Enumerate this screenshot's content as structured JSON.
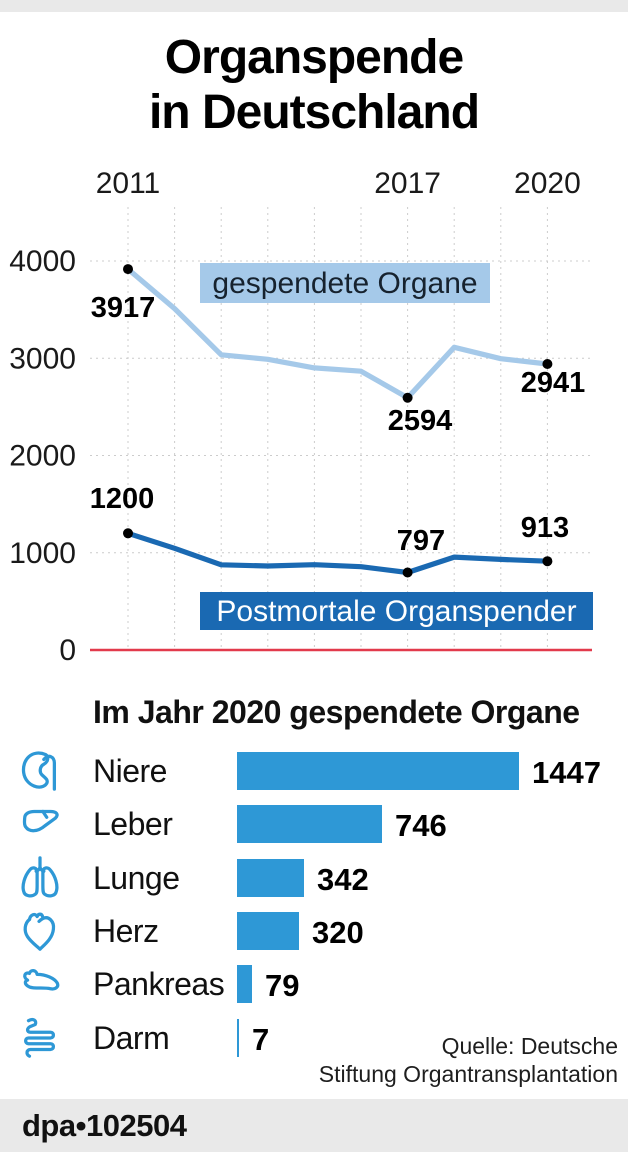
{
  "header": {
    "title_line1": "Organspende",
    "title_line2": "in Deutschland"
  },
  "chart_data": [
    {
      "type": "line",
      "x": [
        2011,
        2012,
        2013,
        2014,
        2015,
        2016,
        2017,
        2018,
        2019,
        2020
      ],
      "x_tick_labels": [
        "2011",
        "2017",
        "2020"
      ],
      "y_ticks": [
        4000,
        3000,
        2000,
        1000,
        0
      ],
      "ylim": [
        0,
        4300
      ],
      "grid": true,
      "series": [
        {
          "name": "gespendete Organe",
          "color": "#a5c9e9",
          "label_bg": "#a5c9e9",
          "label_text_color": "#16222e",
          "values": [
            3917,
            3511,
            3035,
            2989,
            2901,
            2867,
            2594,
            3113,
            2995,
            2941
          ],
          "labeled_points": [
            {
              "x": 2011,
              "value": 3917
            },
            {
              "x": 2017,
              "value": 2594
            },
            {
              "x": 2020,
              "value": 2941
            }
          ]
        },
        {
          "name": "Postmortale Organspender",
          "color": "#1a69b2",
          "label_bg": "#1a69b2",
          "label_text_color": "#ffffff",
          "values": [
            1200,
            1046,
            876,
            864,
            877,
            857,
            797,
            955,
            932,
            913
          ],
          "labeled_points": [
            {
              "x": 2011,
              "value": 1200
            },
            {
              "x": 2017,
              "value": 797
            },
            {
              "x": 2020,
              "value": 913
            }
          ]
        }
      ]
    },
    {
      "type": "bar",
      "orientation": "horizontal",
      "title": "Im Jahr 2020 gespendete Organe",
      "categories": [
        "Niere",
        "Leber",
        "Lunge",
        "Herz",
        "Pankreas",
        "Darm"
      ],
      "values": [
        1447,
        746,
        342,
        320,
        79,
        7
      ],
      "icons": [
        "kidney-icon",
        "liver-icon",
        "lungs-icon",
        "heart-icon",
        "pancreas-icon",
        "intestine-icon"
      ],
      "bar_color": "#2e98d6"
    }
  ],
  "source": {
    "line1": "Quelle: Deutsche",
    "line2": "Stiftung Organtransplantation"
  },
  "footer": {
    "brand": "dpa",
    "separator": "•",
    "code": "102504"
  },
  "colors": {
    "bar_blue": "#2e98d6",
    "light_blue": "#a5c9e9",
    "dark_blue": "#1a69b2",
    "red": "#e23a4c",
    "grid": "#cccccc",
    "strip_gray": "#e9e9e9",
    "text": "#111111"
  }
}
